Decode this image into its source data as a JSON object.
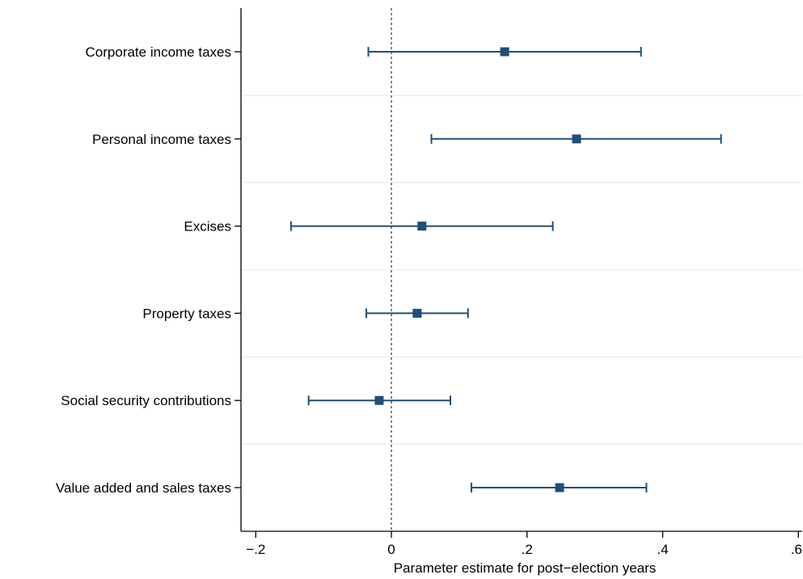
{
  "chart_data": {
    "type": "coefficient_plot",
    "title": "",
    "xlabel": "Parameter estimate for post−election years",
    "ylabel": "",
    "xlim": [
      -0.22,
      0.6
    ],
    "x_ticks": [
      {
        "value": -0.2,
        "label": "−.2"
      },
      {
        "value": 0,
        "label": "0"
      },
      {
        "value": 0.2,
        "label": ".2"
      },
      {
        "value": 0.4,
        "label": ".4"
      },
      {
        "value": 0.6,
        "label": ".6"
      }
    ],
    "reference_line": 0,
    "grid": "horizontal separators",
    "marker_color": "#1f4e79",
    "categories": [
      "Corporate income taxes",
      "Personal income taxes",
      "Excises",
      "Property taxes",
      "Social security contributions",
      "Value added and sales taxes"
    ],
    "estimates": [
      0.167,
      0.273,
      0.045,
      0.038,
      -0.018,
      0.248
    ],
    "ci_low": [
      -0.034,
      0.059,
      -0.148,
      -0.037,
      -0.122,
      0.118
    ],
    "ci_high": [
      0.368,
      0.486,
      0.238,
      0.113,
      0.087,
      0.376
    ]
  }
}
